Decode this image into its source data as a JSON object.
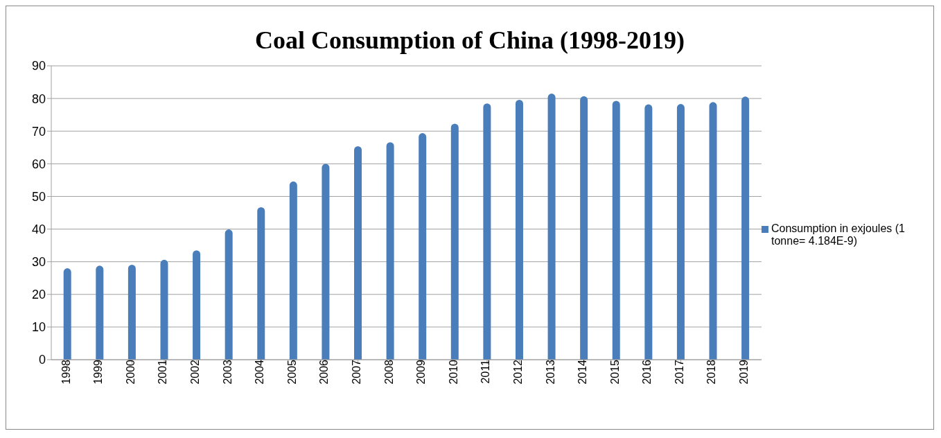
{
  "chart_data": {
    "type": "bar",
    "title": "Coal Consumption of China (1998-2019)",
    "categories": [
      "1998",
      "1999",
      "2000",
      "2001",
      "2002",
      "2003",
      "2004",
      "2005",
      "2006",
      "2007",
      "2008",
      "2009",
      "2010",
      "2011",
      "2012",
      "2013",
      "2014",
      "2015",
      "2016",
      "2017",
      "2018",
      "2019"
    ],
    "series": [
      {
        "name": "Consumption in exjoules (1 tonne= 4.184E-9)",
        "color": "#4a7ebb",
        "values": [
          28,
          28.8,
          29.1,
          30.6,
          33.5,
          39.9,
          46.7,
          54.6,
          60,
          65.4,
          66.6,
          69.4,
          72.3,
          78.5,
          79.6,
          81.5,
          80.7,
          79.3,
          78.2,
          78.3,
          78.9,
          80.6
        ]
      }
    ],
    "ylim": [
      0,
      90
    ],
    "yticks": [
      0,
      10,
      20,
      30,
      40,
      50,
      60,
      70,
      80,
      90
    ],
    "grid": "y",
    "legend": "right"
  }
}
